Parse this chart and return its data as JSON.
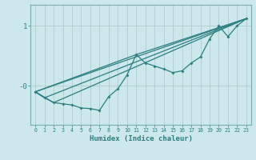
{
  "xlabel": "Humidex (Indice chaleur)",
  "bg_color": "#cce8ec",
  "line_color": "#2a7f7f",
  "grid_color": "#b0cccc",
  "xlim": [
    -0.5,
    23.5
  ],
  "ylim": [
    -0.65,
    1.35
  ],
  "yticks": [
    0.0,
    1.0
  ],
  "ytick_labels": [
    "-0",
    "1"
  ],
  "xticks": [
    0,
    1,
    2,
    3,
    4,
    5,
    6,
    7,
    8,
    9,
    10,
    11,
    12,
    13,
    14,
    15,
    16,
    17,
    18,
    19,
    20,
    21,
    22,
    23
  ],
  "line1_x": [
    0,
    1,
    2,
    3,
    4,
    5,
    6,
    7,
    8,
    9,
    10,
    11,
    12,
    13,
    14,
    15,
    16,
    17,
    18,
    19,
    20,
    21,
    22,
    23
  ],
  "line1_y": [
    -0.1,
    -0.2,
    -0.28,
    -0.3,
    -0.32,
    -0.37,
    -0.38,
    -0.41,
    -0.18,
    -0.05,
    0.18,
    0.52,
    0.38,
    0.33,
    0.28,
    0.22,
    0.25,
    0.38,
    0.48,
    0.78,
    1.0,
    0.82,
    1.0,
    1.12
  ],
  "line2_x": [
    0,
    23
  ],
  "line2_y": [
    -0.1,
    1.12
  ],
  "line3_x": [
    0,
    2,
    23
  ],
  "line3_y": [
    -0.1,
    -0.28,
    1.12
  ],
  "line4_x": [
    0,
    11,
    23
  ],
  "line4_y": [
    -0.1,
    0.52,
    1.12
  ],
  "line5_x": [
    0,
    1,
    23
  ],
  "line5_y": [
    -0.1,
    -0.2,
    1.12
  ]
}
